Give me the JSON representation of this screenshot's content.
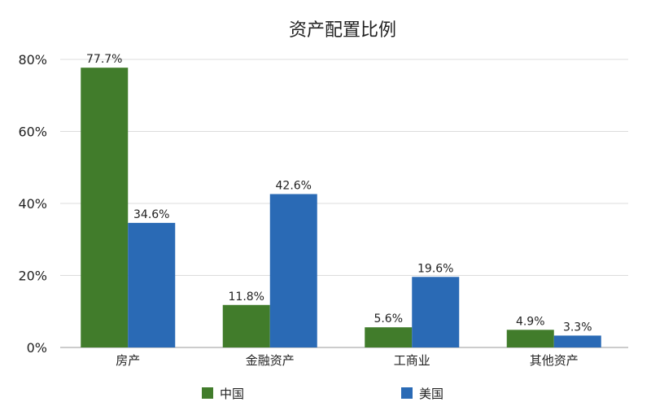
{
  "chart_data": {
    "type": "bar",
    "title": "资产配置比例",
    "xlabel": "",
    "ylabel": "",
    "categories": [
      "房产",
      "金融资产",
      "工商业",
      "其他资产"
    ],
    "series": [
      {
        "name": "中国",
        "color": "#417c2b",
        "values": [
          77.7,
          11.8,
          5.6,
          4.9
        ],
        "labels": [
          "77.7%",
          "11.8%",
          "5.6%",
          "4.9%"
        ]
      },
      {
        "name": "美国",
        "color": "#2a6ab5",
        "values": [
          34.6,
          42.6,
          19.6,
          3.3
        ],
        "labels": [
          "34.6%",
          "42.6%",
          "19.6%",
          "3.3%"
        ]
      }
    ],
    "ylim": [
      0,
      80
    ],
    "yticks": [
      0,
      20,
      40,
      60,
      80
    ],
    "ytick_labels": [
      "0%",
      "20%",
      "40%",
      "60%",
      "80%"
    ],
    "grid": true,
    "legend_position": "bottom"
  }
}
